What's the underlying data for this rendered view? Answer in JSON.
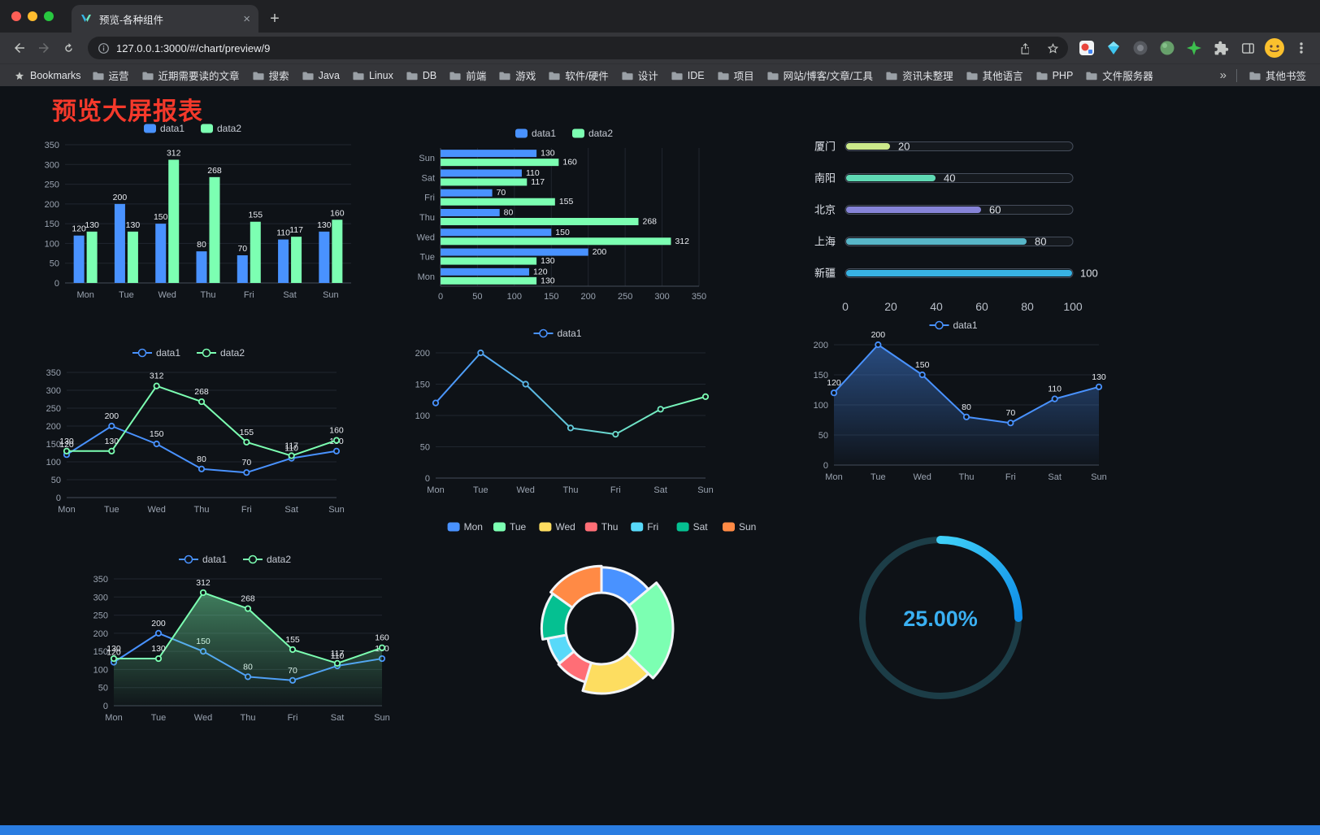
{
  "window": {
    "tab_title": "预览-各种组件",
    "url": "127.0.0.1:3000/#/chart/preview/9",
    "new_tab_label": "+",
    "close_tab_label": "×"
  },
  "bookmarks_bar": {
    "root_label": "Bookmarks",
    "folders": [
      "运营",
      "近期需要读的文章",
      "搜索",
      "Java",
      "Linux",
      "DB",
      "前端",
      "游戏",
      "软件/硬件",
      "设计",
      "IDE",
      "项目",
      "网站/博客/文章/工具",
      "资讯未整理",
      "其他语言",
      "PHP",
      "文件服务器"
    ],
    "overflow_chevron": "»",
    "other_bookmarks_label": "其他书签"
  },
  "page": {
    "title": "预览大屏报表"
  },
  "colors": {
    "data1": "#4992ff",
    "data2": "#7cffb2",
    "page_title_red": "#f5392b",
    "footer_blue": "#2a7de2"
  },
  "chart_data": [
    {
      "id": "bar-grouped",
      "type": "bar",
      "categories": [
        "Mon",
        "Tue",
        "Wed",
        "Thu",
        "Fri",
        "Sat",
        "Sun"
      ],
      "series": [
        {
          "name": "data1",
          "color": "#4992ff",
          "values": [
            120,
            200,
            150,
            80,
            70,
            110,
            130
          ]
        },
        {
          "name": "data2",
          "color": "#7cffb2",
          "values": [
            130,
            130,
            312,
            268,
            155,
            117,
            160
          ]
        }
      ],
      "ylim": [
        0,
        350
      ],
      "yticks": [
        0,
        50,
        100,
        150,
        200,
        250,
        300,
        350
      ],
      "legend_position": "top",
      "grid": true,
      "show_labels": true
    },
    {
      "id": "bar-horizontal",
      "type": "bar-horizontal",
      "categories": [
        "Mon",
        "Tue",
        "Wed",
        "Thu",
        "Fri",
        "Sat",
        "Sun"
      ],
      "series": [
        {
          "name": "data1",
          "color": "#4992ff",
          "values": [
            120,
            200,
            150,
            80,
            70,
            110,
            130
          ]
        },
        {
          "name": "data2",
          "color": "#7cffb2",
          "values": [
            130,
            130,
            312,
            268,
            155,
            117,
            160
          ]
        }
      ],
      "xlim": [
        0,
        350
      ],
      "xticks": [
        0,
        50,
        100,
        150,
        200,
        250,
        300,
        350
      ],
      "legend_position": "top",
      "grid": true,
      "show_labels": true
    },
    {
      "id": "progress-capsule",
      "type": "bar-horizontal-capsule",
      "categories": [
        "厦门",
        "南阳",
        "北京",
        "上海",
        "新疆"
      ],
      "values": [
        20,
        40,
        60,
        80,
        100
      ],
      "colors": [
        "#cbe98a",
        "#5fd9b4",
        "#8684d8",
        "#58b6c8",
        "#38b2e3"
      ],
      "xlim": [
        0,
        100
      ],
      "xticks": [
        0,
        20,
        40,
        60,
        80,
        100
      ],
      "show_labels": true
    },
    {
      "id": "line-dual",
      "type": "line",
      "categories": [
        "Mon",
        "Tue",
        "Wed",
        "Thu",
        "Fri",
        "Sat",
        "Sun"
      ],
      "series": [
        {
          "name": "data1",
          "color": "#4992ff",
          "values": [
            120,
            200,
            150,
            80,
            70,
            110,
            130
          ]
        },
        {
          "name": "data2",
          "color": "#7cffb2",
          "values": [
            130,
            130,
            312,
            268,
            155,
            117,
            160
          ]
        }
      ],
      "ylim": [
        0,
        350
      ],
      "yticks": [
        0,
        50,
        100,
        150,
        200,
        250,
        300,
        350
      ],
      "legend_position": "top",
      "grid": true,
      "show_labels": true
    },
    {
      "id": "line-gradient",
      "type": "line",
      "categories": [
        "Mon",
        "Tue",
        "Wed",
        "Thu",
        "Fri",
        "Sat",
        "Sun"
      ],
      "series": [
        {
          "name": "data1",
          "color": "#4992ff",
          "gradient": [
            "#4992ff",
            "#7cffb2"
          ],
          "values": [
            120,
            200,
            150,
            80,
            70,
            110,
            130
          ]
        }
      ],
      "ylim": [
        0,
        200
      ],
      "yticks": [
        0,
        50,
        100,
        150,
        200
      ],
      "legend_position": "top",
      "grid": true,
      "show_labels": false
    },
    {
      "id": "line-area",
      "type": "line",
      "categories": [
        "Mon",
        "Tue",
        "Wed",
        "Thu",
        "Fri",
        "Sat",
        "Sun"
      ],
      "series": [
        {
          "name": "data1",
          "color": "#4992ff",
          "area": true,
          "values": [
            120,
            200,
            150,
            80,
            70,
            110,
            130
          ]
        }
      ],
      "ylim": [
        0,
        200
      ],
      "yticks": [
        0,
        50,
        100,
        150,
        200
      ],
      "legend_position": "top",
      "grid": true,
      "show_labels": true
    },
    {
      "id": "line-dual-area",
      "type": "line",
      "categories": [
        "Mon",
        "Tue",
        "Wed",
        "Thu",
        "Fri",
        "Sat",
        "Sun"
      ],
      "series": [
        {
          "name": "data1",
          "color": "#4992ff",
          "values": [
            120,
            200,
            150,
            80,
            70,
            110,
            130
          ]
        },
        {
          "name": "data2",
          "color": "#7cffb2",
          "area": true,
          "values": [
            130,
            130,
            312,
            268,
            155,
            117,
            160
          ]
        }
      ],
      "ylim": [
        0,
        350
      ],
      "yticks": [
        0,
        50,
        100,
        150,
        200,
        250,
        300,
        350
      ],
      "legend_position": "top",
      "grid": true,
      "show_labels": true
    },
    {
      "id": "donut-rose",
      "type": "pie",
      "categories": [
        "Mon",
        "Tue",
        "Wed",
        "Thu",
        "Fri",
        "Sat",
        "Sun"
      ],
      "values": [
        120,
        200,
        150,
        80,
        70,
        110,
        130
      ],
      "colors": [
        "#4992ff",
        "#7cffb2",
        "#fddd60",
        "#ff6e76",
        "#58d9f9",
        "#05c091",
        "#ff8a45"
      ],
      "legend_position": "top",
      "rose": true,
      "inner_radius": true
    },
    {
      "id": "gauge-percent",
      "type": "gauge",
      "percent": 25,
      "display": "25.00%",
      "color": "#3ab0f2",
      "track_color": "#1c3d47"
    }
  ]
}
